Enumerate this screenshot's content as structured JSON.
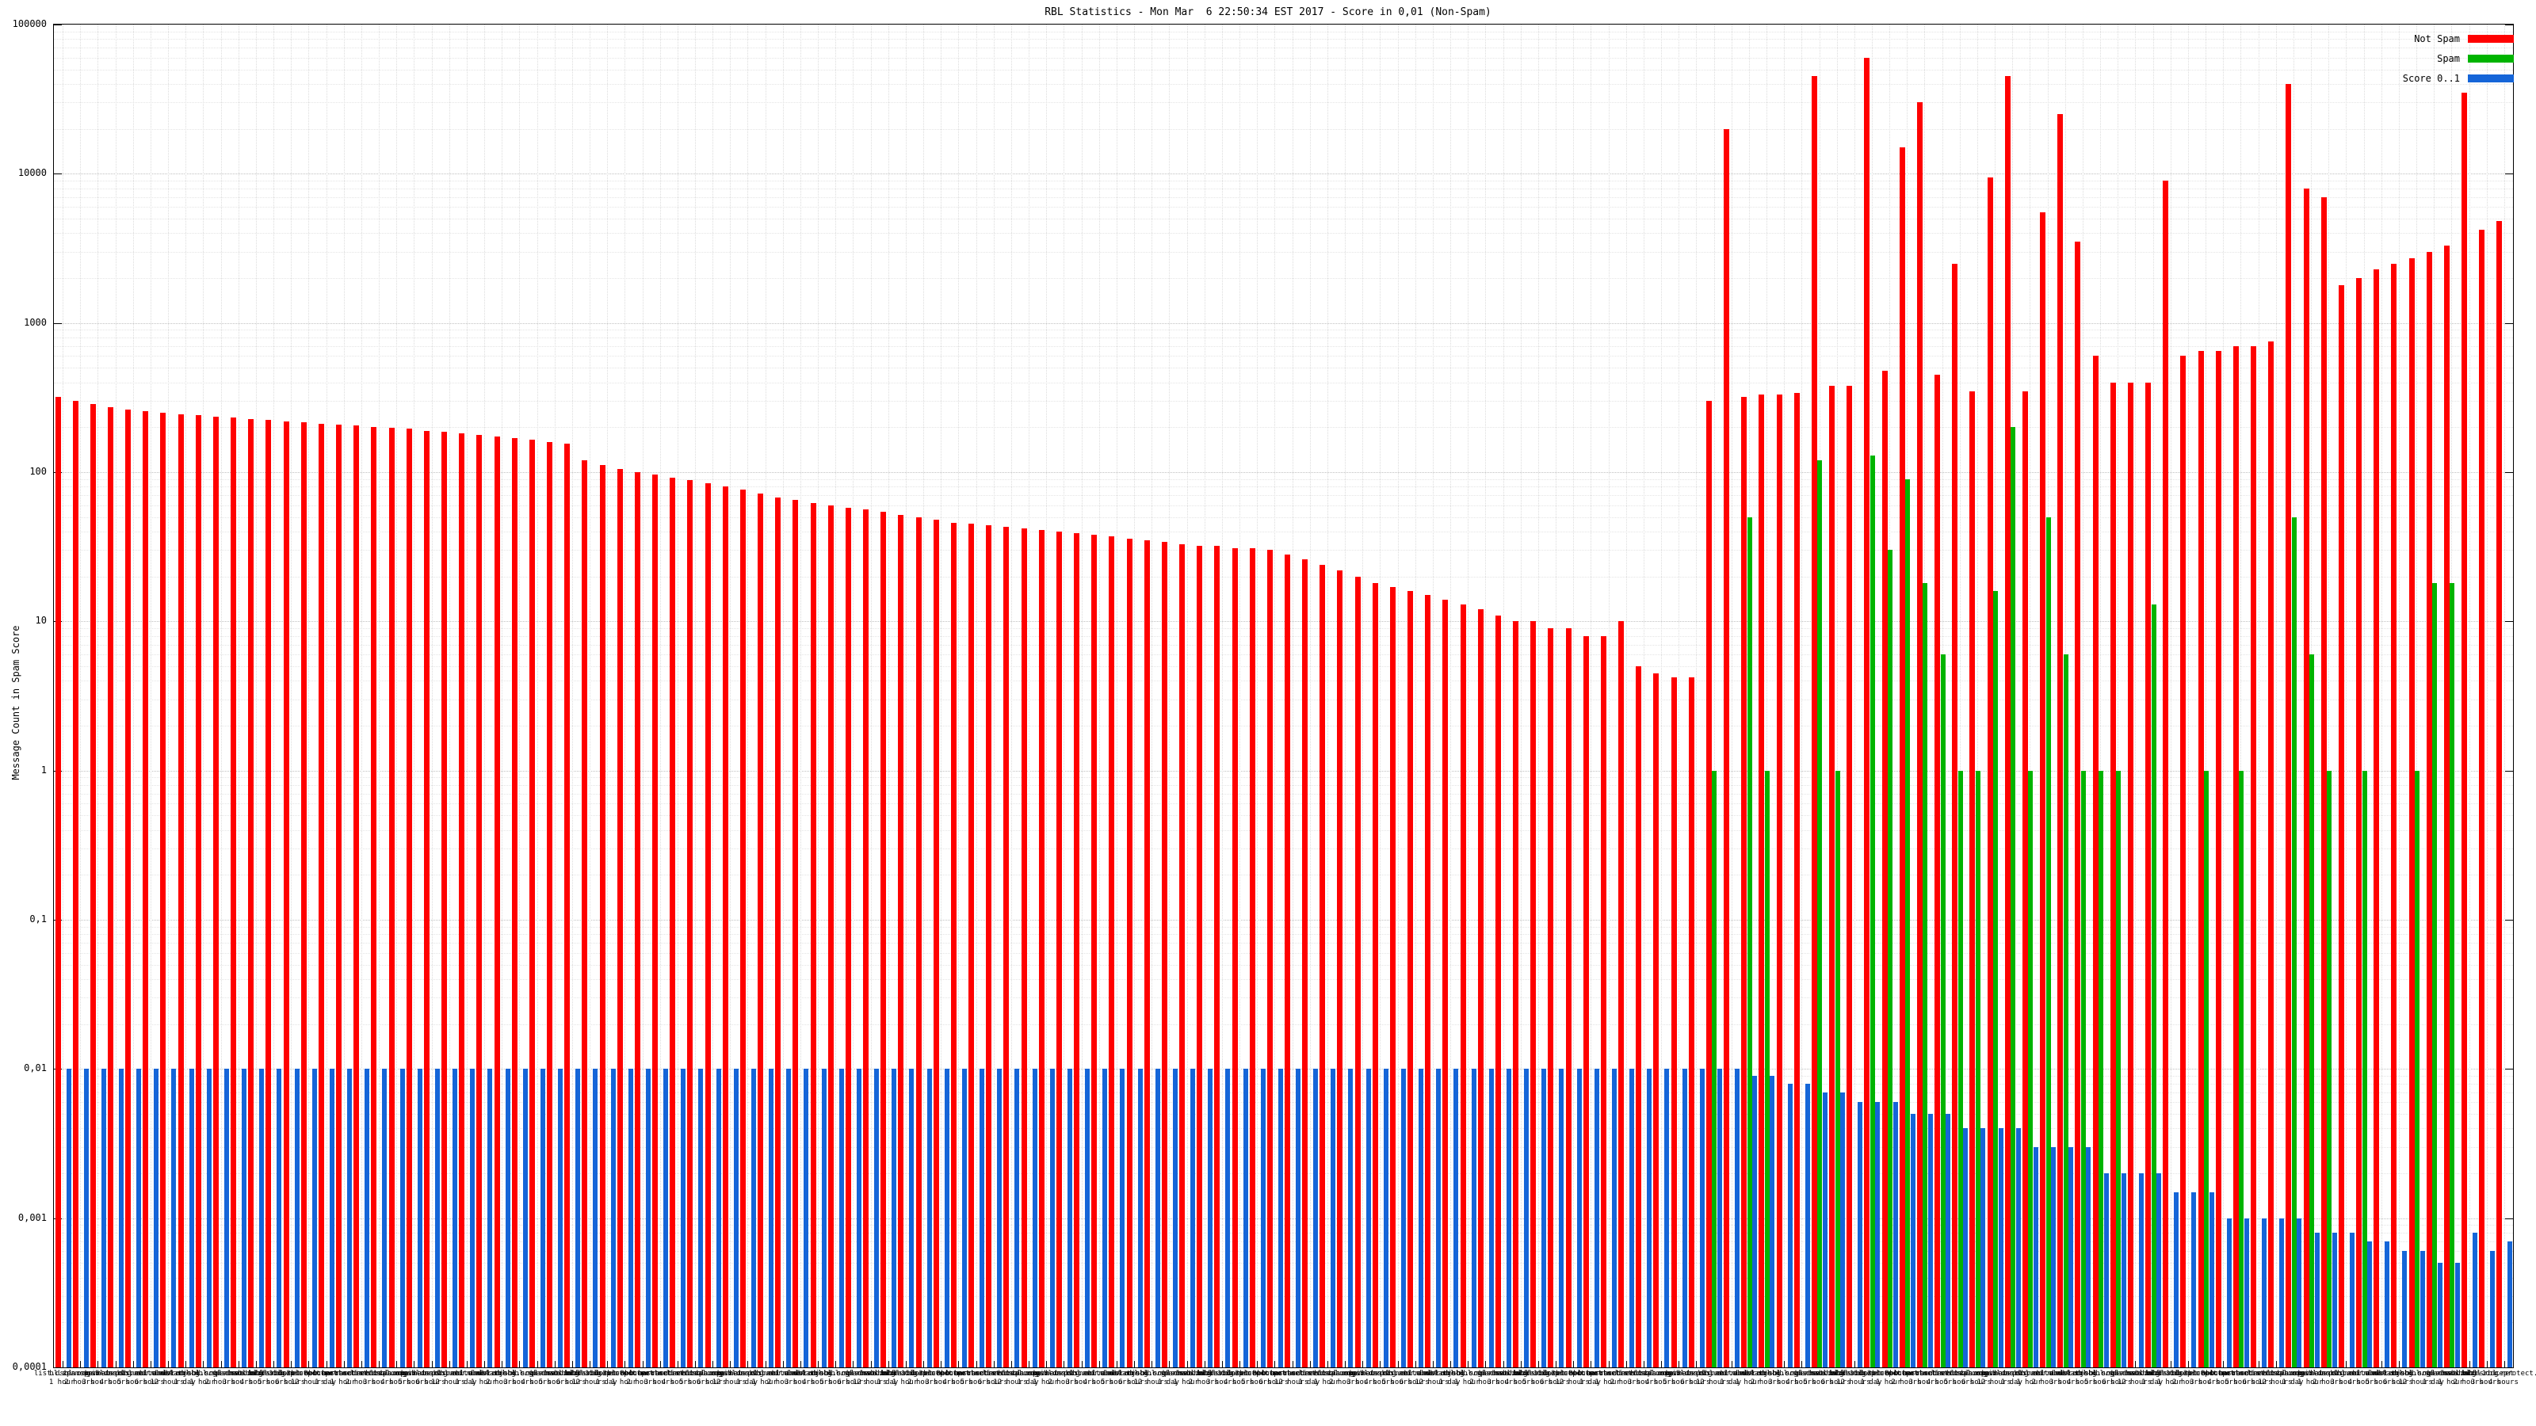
{
  "title": "RBL Statistics - Mon Mar  6 22:50:34 EST 2017 - Score in 0,01 (Non-Spam)",
  "axes": {
    "y_label": "Message Count in Spam Score",
    "y_ticks": [
      "100000",
      "10000",
      "1000",
      "100",
      "10",
      "1",
      "0,1",
      "0,01",
      "0,001",
      "0,0001"
    ]
  },
  "legend": [
    {
      "label": "Not Spam",
      "color": "#ff0000"
    },
    {
      "label": "Spam",
      "color": "#00b400"
    },
    {
      "label": "Score 0..1",
      "color": "#1565d8"
    }
  ],
  "chart_data": {
    "type": "bar",
    "yscale": "log",
    "ylim": [
      0.0001,
      100000
    ],
    "grid": true,
    "legend_position": "top-right",
    "title": "RBL Statistics - Mon Mar  6 22:50:34 EST 2017 - Score in 0,01 (Non-Spam)",
    "ylabel": "Message Count in Spam Score",
    "xlabel": "",
    "x_label_palette": [
      "list.dsbl.org",
      "bl.spamcop.net",
      "zen.spamhaus.org",
      "dnsbl.sorbs.net",
      "ix.dnsbl.manitu.net",
      "psbl.surriel.com",
      "cbl.abuseat.org",
      "dnsbl.njabl.org",
      "dul.dnsbl.sorbs.net",
      "sbl-xbl.spamhaus.org",
      "bl.csma.biz",
      "dnsbl.ahbl.org",
      "rbl.msrbl.net",
      "dnsbl-1.uceprotect.net",
      "dnsbl-2.uceprotect.net",
      "dnsbl-3.uceprotect.net",
      "ubl.unsubscore.com",
      "b.barracudacentral.org"
    ],
    "x_period_palette": [
      "1 hour",
      "2 hours",
      "3 hours",
      "4 hours",
      "5 hours",
      "6 hours",
      "12 hours",
      "1 day"
    ],
    "series": [
      {
        "name": "Not Spam",
        "color": "#ff0000",
        "values": [
          320,
          300,
          285,
          272,
          262,
          255,
          250,
          245,
          240,
          236,
          232,
          228,
          224,
          220,
          216,
          212,
          208,
          205,
          202,
          198,
          195,
          190,
          186,
          182,
          178,
          174,
          170,
          165,
          160,
          155,
          120,
          112,
          105,
          100,
          96,
          92,
          88,
          84,
          80,
          76,
          72,
          68,
          65,
          62,
          60,
          58,
          56,
          54,
          52,
          50,
          48,
          46,
          45,
          44,
          43,
          42,
          41,
          40,
          39,
          38,
          37,
          36,
          35,
          34,
          33,
          32,
          32,
          31,
          31,
          30,
          28,
          26,
          24,
          22,
          20,
          18,
          17,
          16,
          15,
          14,
          13,
          12,
          11,
          10,
          10,
          9,
          9,
          8,
          8,
          10,
          5,
          4.5,
          4.2,
          4.2,
          300,
          20000,
          320,
          330,
          330,
          340,
          45000,
          380,
          380,
          60000,
          480,
          15000,
          30000,
          450,
          2500,
          350,
          9500,
          45000,
          350,
          5500,
          25000,
          3500,
          600,
          400,
          400,
          400,
          9000,
          600,
          650,
          650,
          700,
          700,
          750,
          40000,
          8000,
          7000,
          1800,
          2000,
          2300,
          2500,
          2700,
          3000,
          3300,
          35000,
          4200,
          4800
        ]
      },
      {
        "name": "Spam",
        "color": "#00b400",
        "values": [
          null,
          null,
          null,
          null,
          null,
          null,
          null,
          null,
          null,
          null,
          null,
          null,
          null,
          null,
          null,
          null,
          null,
          null,
          null,
          null,
          null,
          null,
          null,
          null,
          null,
          null,
          null,
          null,
          null,
          null,
          null,
          null,
          null,
          null,
          null,
          null,
          null,
          null,
          null,
          null,
          null,
          null,
          null,
          null,
          null,
          null,
          null,
          null,
          null,
          null,
          null,
          null,
          null,
          null,
          null,
          null,
          null,
          null,
          null,
          null,
          null,
          null,
          null,
          null,
          null,
          null,
          null,
          null,
          null,
          null,
          null,
          null,
          null,
          null,
          null,
          null,
          null,
          null,
          null,
          null,
          null,
          null,
          null,
          null,
          null,
          null,
          null,
          null,
          null,
          null,
          null,
          null,
          null,
          null,
          1,
          null,
          50,
          1,
          null,
          null,
          120,
          1,
          null,
          130,
          30,
          90,
          18,
          6,
          1,
          1,
          16,
          200,
          1,
          50,
          6,
          1,
          1,
          1,
          null,
          13,
          null,
          null,
          1,
          null,
          1,
          null,
          null,
          50,
          6,
          1,
          null,
          1,
          null,
          null,
          1,
          18,
          18,
          null,
          null,
          null
        ]
      },
      {
        "name": "Score 0..1",
        "color": "#1565d8",
        "values": [
          0.01,
          0.01,
          0.01,
          0.01,
          0.01,
          0.01,
          0.01,
          0.01,
          0.01,
          0.01,
          0.01,
          0.01,
          0.01,
          0.01,
          0.01,
          0.01,
          0.01,
          0.01,
          0.01,
          0.01,
          0.01,
          0.01,
          0.01,
          0.01,
          0.01,
          0.01,
          0.01,
          0.01,
          0.01,
          0.01,
          0.01,
          0.01,
          0.01,
          0.01,
          0.01,
          0.01,
          0.01,
          0.01,
          0.01,
          0.01,
          0.01,
          0.01,
          0.01,
          0.01,
          0.01,
          0.01,
          0.01,
          0.01,
          0.01,
          0.01,
          0.01,
          0.01,
          0.01,
          0.01,
          0.01,
          0.01,
          0.01,
          0.01,
          0.01,
          0.01,
          0.01,
          0.01,
          0.01,
          0.01,
          0.01,
          0.01,
          0.01,
          0.01,
          0.01,
          0.01,
          0.01,
          0.01,
          0.01,
          0.01,
          0.01,
          0.01,
          0.01,
          0.01,
          0.01,
          0.01,
          0.01,
          0.01,
          0.01,
          0.01,
          0.01,
          0.01,
          0.01,
          0.01,
          0.01,
          0.01,
          0.01,
          0.01,
          0.01,
          0.01,
          0.01,
          0.01,
          0.009,
          0.009,
          0.008,
          0.008,
          0.007,
          0.007,
          0.006,
          0.006,
          0.006,
          0.005,
          0.005,
          0.005,
          0.004,
          0.004,
          0.004,
          0.004,
          0.003,
          0.003,
          0.003,
          0.003,
          0.002,
          0.002,
          0.002,
          0.002,
          0.0015,
          0.0015,
          0.0015,
          0.001,
          0.001,
          0.001,
          0.001,
          0.001,
          0.0008,
          0.0008,
          0.0008,
          0.0007,
          0.0007,
          0.0006,
          0.0006,
          0.0005,
          0.0005,
          0.0008,
          0.0006,
          0.0007
        ]
      }
    ]
  }
}
